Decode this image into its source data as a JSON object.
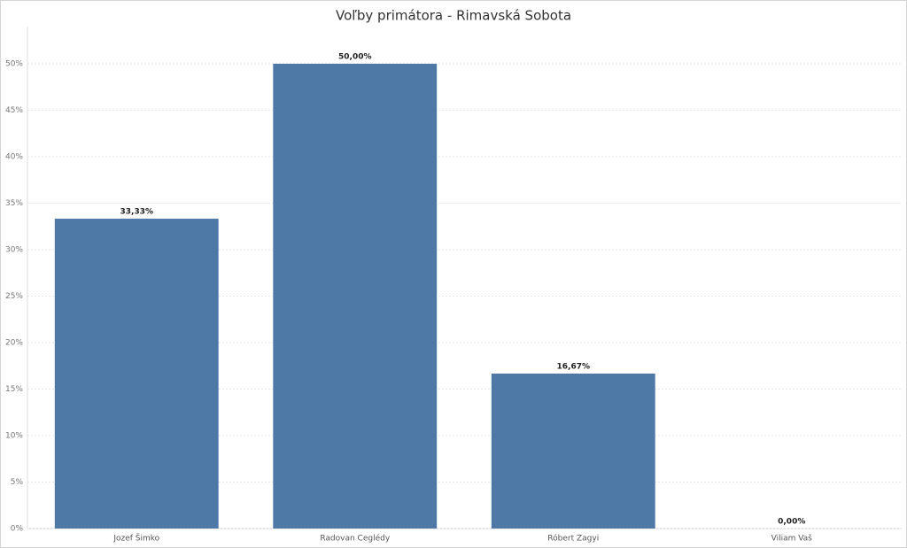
{
  "chart_data": {
    "type": "bar",
    "title": "Voľby primátora - Rimavská Sobota",
    "categories": [
      "Jozef Šimko",
      "Radovan Ceglédy",
      "Róbert Zagyi",
      "Viliam Vaš"
    ],
    "values": [
      33.33,
      50,
      16.67,
      0
    ],
    "value_labels": [
      "33,33%",
      "50,00%",
      "16,67%",
      "0,00%"
    ],
    "color": "#4e79a7",
    "ylim": [
      0,
      54
    ],
    "yticks": [
      {
        "value": 0,
        "label": "0%"
      },
      {
        "value": 5,
        "label": "5%"
      },
      {
        "value": 10,
        "label": "10%"
      },
      {
        "value": 15,
        "label": "15%"
      },
      {
        "value": 20,
        "label": "20%"
      },
      {
        "value": 25,
        "label": "25%"
      },
      {
        "value": 30,
        "label": "30%"
      },
      {
        "value": 35,
        "label": "35%"
      },
      {
        "value": 40,
        "label": "40%"
      },
      {
        "value": 45,
        "label": "45%"
      },
      {
        "value": 50,
        "label": "50%"
      }
    ],
    "grid": true
  }
}
